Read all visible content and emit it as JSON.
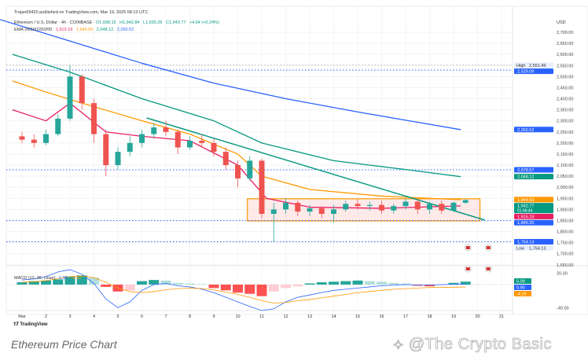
{
  "header": {
    "published": "Trojan69420 published on TradingView.com, Mar 19, 2025 08:13 UTC",
    "symbol": "Ethereum / U.S. Dollar · 4h · COINBASE",
    "ohlc": {
      "o": "O1,938.15",
      "h": "H1,942.84",
      "l": "L1,930.26",
      "c": "C1,942.77",
      "chg": "+4.64 (+0.24%)"
    },
    "ema_label": "EMA 20/50/100/200",
    "ema_values": [
      "1,915.19",
      "1,944.50",
      "2,048.12",
      "2,260.52"
    ]
  },
  "macd_header": {
    "label": "MACD (12, 26, close)",
    "macd": "0.90",
    "signal": "-4.19"
  },
  "tradingview_logo": "TradingView",
  "caption": "Ethereum Price Chart",
  "watermark": "@The Crypto Basic",
  "colors": {
    "up": "#26a69a",
    "down": "#ef5350",
    "ema20": "#e91e63",
    "ema50": "#ff9800",
    "ema100": "#089981",
    "ema200": "#2962ff",
    "hline": "#2962ff",
    "box": "#ff9800",
    "trend": "#089981"
  },
  "chart_data": {
    "type": "candlestick",
    "currency_label": "USD",
    "ylim": [
      1650,
      2700
    ],
    "y_ticks": [
      "2,700.00",
      "2,650.00",
      "2,600.00",
      "2,550.00",
      "2,500.00",
      "2,450.00",
      "2,400.00",
      "2,350.00",
      "2,300.00",
      "2,250.00",
      "2,200.00",
      "2,150.00",
      "2,100.00",
      "2,050.00",
      "2,000.00",
      "1,950.00",
      "1,900.00",
      "1,850.00",
      "1,800.00",
      "1,750.00",
      "1,700.00",
      "1,650.00"
    ],
    "x_ticks": [
      "Mar",
      "2",
      "3",
      "4",
      "5",
      "6",
      "7",
      "8",
      "9",
      "10",
      "11",
      "12",
      "13",
      "14",
      "15",
      "16",
      "17",
      "18",
      "19",
      "20",
      "21"
    ],
    "candles_day": [
      1.0,
      1.5,
      2.0,
      2.5,
      3.0,
      3.5,
      4.0,
      4.5,
      5.0,
      5.5,
      6.0,
      6.5,
      7.0,
      7.5,
      8.0,
      8.5,
      9.0,
      9.5,
      10.0,
      10.5,
      11.0,
      11.5,
      12.0,
      12.5,
      13.0,
      13.5,
      14.0,
      14.5,
      15.0,
      15.5,
      16.0,
      16.5,
      17.0,
      17.5,
      18.0,
      18.5,
      19.0,
      19.5
    ],
    "ohlc": [
      [
        2230,
        2250,
        2200,
        2215
      ],
      [
        2215,
        2240,
        2180,
        2200
      ],
      [
        2200,
        2260,
        2190,
        2240
      ],
      [
        2240,
        2330,
        2230,
        2310
      ],
      [
        2310,
        2551,
        2300,
        2500
      ],
      [
        2500,
        2510,
        2350,
        2380
      ],
      [
        2380,
        2400,
        2200,
        2240
      ],
      [
        2240,
        2260,
        2050,
        2100
      ],
      [
        2100,
        2180,
        2080,
        2160
      ],
      [
        2160,
        2230,
        2140,
        2200
      ],
      [
        2200,
        2260,
        2180,
        2240
      ],
      [
        2240,
        2290,
        2220,
        2270
      ],
      [
        2270,
        2300,
        2230,
        2250
      ],
      [
        2250,
        2260,
        2150,
        2180
      ],
      [
        2180,
        2230,
        2170,
        2210
      ],
      [
        2210,
        2240,
        2180,
        2200
      ],
      [
        2200,
        2220,
        2140,
        2160
      ],
      [
        2160,
        2180,
        2080,
        2100
      ],
      [
        2100,
        2120,
        2000,
        2040
      ],
      [
        2040,
        2140,
        2030,
        2120
      ],
      [
        2120,
        2130,
        1860,
        1880
      ],
      [
        1880,
        1930,
        1754,
        1900
      ],
      [
        1900,
        1950,
        1880,
        1930
      ],
      [
        1930,
        1940,
        1870,
        1890
      ],
      [
        1890,
        1920,
        1870,
        1905
      ],
      [
        1905,
        1915,
        1860,
        1880
      ],
      [
        1880,
        1920,
        1840,
        1900
      ],
      [
        1900,
        1940,
        1890,
        1925
      ],
      [
        1925,
        1945,
        1900,
        1915
      ],
      [
        1915,
        1935,
        1895,
        1920
      ],
      [
        1920,
        1940,
        1880,
        1895
      ],
      [
        1895,
        1925,
        1880,
        1915
      ],
      [
        1915,
        1950,
        1900,
        1935
      ],
      [
        1935,
        1945,
        1880,
        1900
      ],
      [
        1900,
        1935,
        1880,
        1925
      ],
      [
        1925,
        1940,
        1880,
        1895
      ],
      [
        1895,
        1935,
        1890,
        1930
      ],
      [
        1930,
        1946,
        1925,
        1942
      ]
    ],
    "ema_series": [
      {
        "name": "EMA 20",
        "days": [
          0.6,
          2,
          3,
          4.5,
          6,
          8,
          10,
          11.2,
          13,
          16,
          19.3
        ],
        "values": [
          2350,
          2300,
          2380,
          2250,
          2230,
          2210,
          2100,
          1950,
          1910,
          1905,
          1916
        ]
      },
      {
        "name": "EMA 50",
        "days": [
          0.6,
          2,
          3.5,
          6,
          8,
          10,
          11,
          13,
          16,
          19.3
        ],
        "values": [
          2480,
          2430,
          2380,
          2300,
          2240,
          2150,
          2050,
          1990,
          1960,
          1944
        ]
      },
      {
        "name": "EMA 100",
        "days": [
          0.6,
          3,
          6,
          9,
          11,
          14,
          17,
          19.3
        ],
        "values": [
          2600,
          2520,
          2400,
          2300,
          2200,
          2120,
          2080,
          2048
        ]
      },
      {
        "name": "EMA 200",
        "days": [
          0,
          3,
          6,
          9,
          12,
          15,
          19.3
        ],
        "values": [
          2760,
          2660,
          2560,
          2470,
          2400,
          2340,
          2260
        ]
      }
    ],
    "trendline": {
      "from": [
        6.2,
        2313
      ],
      "to": [
        20.3,
        1852
      ]
    },
    "range_box": {
      "days": [
        10.4,
        20.1
      ],
      "prices": [
        1848,
        1948
      ]
    },
    "horizontal_levels": [
      {
        "price": 2529.09,
        "label": "2,529.09",
        "color": "#2962ff"
      },
      {
        "price": 2078.57,
        "label": "2,078.57",
        "color": "#2962ff"
      },
      {
        "price": 1849.2,
        "label": "1,849.20",
        "color": "#2962ff"
      },
      {
        "price": 1754.13,
        "label": "1,754.13",
        "color": "#2962ff"
      }
    ],
    "price_tags": [
      {
        "price": 2551.49,
        "label": "2,551.49",
        "prefix": "High",
        "color": "#e8eefc"
      },
      {
        "price": 2260.52,
        "label": "2,260.52",
        "color": "#2962ff"
      },
      {
        "price": 2048.12,
        "label": "2,048.12",
        "color": "#089981"
      },
      {
        "price": 1944.5,
        "label": "1,944.50",
        "color": "#ff9800"
      },
      {
        "price": 1942.77,
        "label": "1,942.77",
        "sub": "01:46:44",
        "color": "#089981"
      },
      {
        "price": 1915.19,
        "label": "1,915.19",
        "color": "#e91e63"
      },
      {
        "price": 1754.13,
        "label": "1,754.13",
        "prefix": "Low",
        "color": "#e8eefc"
      }
    ],
    "macd": {
      "ylim": [
        -40,
        20
      ],
      "y_ticks": [
        "20.00",
        "-40.00"
      ],
      "histogram": [
        4,
        6,
        7,
        9,
        14,
        16,
        12,
        -4,
        -12,
        -10,
        6,
        8,
        7,
        3,
        2,
        1,
        -6,
        -10,
        -14,
        -16,
        -20,
        -12,
        -6,
        -3,
        2,
        4,
        5,
        6,
        7,
        6,
        5,
        3,
        2,
        -2,
        -3,
        -1,
        3,
        5.09
      ],
      "macd_line": [
        8,
        10,
        14,
        22,
        26,
        18,
        2,
        -25,
        -40,
        -30,
        -10,
        0,
        2,
        -2,
        -4,
        -8,
        -14,
        -22,
        -30,
        -38,
        -45,
        -42,
        -30,
        -22,
        -18,
        -14,
        -10,
        -8,
        -6,
        -4,
        -2,
        -1,
        0,
        -1,
        -1,
        0,
        0.5,
        0.9
      ],
      "signal_line": [
        4,
        5,
        7,
        10,
        14,
        15,
        12,
        4,
        -6,
        -12,
        -14,
        -12,
        -9,
        -7,
        -6,
        -7,
        -9,
        -13,
        -17,
        -22,
        -28,
        -32,
        -31,
        -28,
        -26,
        -23,
        -20,
        -17,
        -14,
        -12,
        -10,
        -8,
        -7,
        -6,
        -5,
        -5,
        -4.5,
        -4.19
      ],
      "tags": [
        {
          "label": "5.09",
          "color": "#089981"
        },
        {
          "label": "0.90",
          "color": "#2962ff"
        },
        {
          "label": "-4.19",
          "color": "#ff9800"
        }
      ]
    }
  }
}
